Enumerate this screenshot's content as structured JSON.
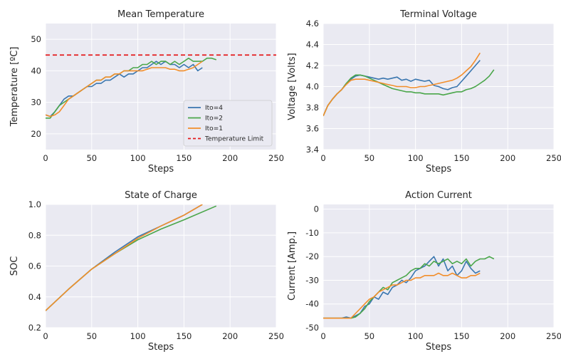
{
  "chart_data": [
    {
      "id": "temp",
      "type": "line",
      "title": "Mean Temperature",
      "xlabel": "Steps",
      "ylabel": "Temperature [ºC]",
      "xlim": [
        0,
        250
      ],
      "ylim": [
        15,
        55
      ],
      "xticks": [
        0,
        50,
        100,
        150,
        200,
        250
      ],
      "yticks": [
        20,
        30,
        40,
        50
      ],
      "grid": true,
      "legend": "lower-right",
      "hline": {
        "name": "Temperature Limit",
        "y": 45,
        "color": "#e41a1c"
      },
      "series": [
        {
          "name": "Ito=4",
          "color": "#3a76af",
          "x": [
            0,
            5,
            10,
            15,
            20,
            25,
            30,
            35,
            40,
            45,
            50,
            55,
            60,
            65,
            70,
            75,
            80,
            85,
            90,
            95,
            100,
            105,
            110,
            115,
            120,
            125,
            130,
            135,
            140,
            145,
            150,
            155,
            160,
            165,
            170
          ],
          "y": [
            26,
            25.5,
            27,
            29,
            31,
            32,
            32,
            33,
            34,
            35,
            35,
            36,
            36,
            37,
            37,
            38,
            39,
            38,
            39,
            39,
            40,
            41,
            41,
            42,
            43,
            42,
            43,
            42,
            42,
            41,
            42,
            41,
            42,
            40,
            41
          ]
        },
        {
          "name": "Ito=2",
          "color": "#4aa64a",
          "x": [
            0,
            5,
            10,
            15,
            20,
            25,
            30,
            35,
            40,
            45,
            50,
            55,
            60,
            65,
            70,
            75,
            80,
            85,
            90,
            95,
            100,
            105,
            110,
            115,
            120,
            125,
            130,
            135,
            140,
            145,
            150,
            155,
            160,
            165,
            170,
            175,
            180,
            185
          ],
          "y": [
            25,
            25,
            27,
            29,
            30,
            31,
            32,
            33,
            34,
            35,
            36,
            37,
            37,
            38,
            38,
            39,
            39,
            40,
            40,
            41,
            41,
            42,
            42,
            43,
            42,
            43,
            43,
            42,
            43,
            42,
            43,
            44,
            43,
            43,
            43,
            44,
            44,
            43.5
          ]
        },
        {
          "name": "Ito=1",
          "color": "#f28e2b",
          "x": [
            0,
            5,
            10,
            15,
            20,
            25,
            30,
            35,
            40,
            45,
            50,
            55,
            60,
            65,
            70,
            75,
            80,
            85,
            90,
            95,
            100,
            105,
            110,
            115,
            120,
            125,
            130,
            135,
            140,
            145,
            150,
            155,
            160,
            165,
            170
          ],
          "y": [
            26,
            25.5,
            26,
            27,
            29,
            31,
            32,
            33,
            34,
            35,
            36,
            37,
            37,
            38,
            38,
            39,
            39,
            40,
            40,
            40,
            40,
            40,
            40.5,
            41,
            41,
            41,
            41,
            40.5,
            40.5,
            40,
            40,
            40.5,
            41,
            42,
            43
          ]
        }
      ]
    },
    {
      "id": "voltage",
      "type": "line",
      "title": "Terminal Voltage",
      "xlabel": "Steps",
      "ylabel": "Voltage [Volts]",
      "xlim": [
        0,
        250
      ],
      "ylim": [
        3.4,
        4.6
      ],
      "xticks": [
        0,
        50,
        100,
        150,
        200,
        250
      ],
      "yticks": [
        3.4,
        3.6,
        3.8,
        4.0,
        4.2,
        4.4,
        4.6
      ],
      "grid": true,
      "series": [
        {
          "name": "Ito=4",
          "color": "#3a76af",
          "x": [
            0,
            5,
            10,
            15,
            20,
            25,
            30,
            35,
            40,
            45,
            50,
            55,
            60,
            65,
            70,
            75,
            80,
            85,
            90,
            95,
            100,
            105,
            110,
            115,
            120,
            125,
            130,
            135,
            140,
            145,
            150,
            155,
            160,
            165,
            170
          ],
          "y": [
            3.72,
            3.82,
            3.88,
            3.93,
            3.97,
            4.03,
            4.07,
            4.1,
            4.11,
            4.1,
            4.09,
            4.08,
            4.07,
            4.08,
            4.07,
            4.08,
            4.09,
            4.06,
            4.07,
            4.05,
            4.07,
            4.06,
            4.05,
            4.06,
            4.01,
            4.0,
            3.98,
            3.97,
            3.99,
            4.0,
            4.05,
            4.1,
            4.15,
            4.2,
            4.25
          ]
        },
        {
          "name": "Ito=2",
          "color": "#4aa64a",
          "x": [
            0,
            5,
            10,
            15,
            20,
            25,
            30,
            35,
            40,
            45,
            50,
            55,
            60,
            65,
            70,
            75,
            80,
            85,
            90,
            95,
            100,
            105,
            110,
            115,
            120,
            125,
            130,
            135,
            140,
            145,
            150,
            155,
            160,
            165,
            170,
            175,
            180,
            185
          ],
          "y": [
            3.72,
            3.82,
            3.88,
            3.93,
            3.97,
            4.03,
            4.08,
            4.11,
            4.11,
            4.1,
            4.08,
            4.06,
            4.04,
            4.02,
            4.0,
            3.98,
            3.97,
            3.96,
            3.95,
            3.95,
            3.94,
            3.94,
            3.93,
            3.93,
            3.93,
            3.93,
            3.92,
            3.93,
            3.94,
            3.95,
            3.95,
            3.97,
            3.98,
            4.0,
            4.03,
            4.06,
            4.1,
            4.16
          ]
        },
        {
          "name": "Ito=1",
          "color": "#f28e2b",
          "x": [
            0,
            5,
            10,
            15,
            20,
            25,
            30,
            35,
            40,
            45,
            50,
            55,
            60,
            65,
            70,
            75,
            80,
            85,
            90,
            95,
            100,
            105,
            110,
            115,
            120,
            125,
            130,
            135,
            140,
            145,
            150,
            155,
            160,
            165,
            170
          ],
          "y": [
            3.72,
            3.82,
            3.88,
            3.93,
            3.97,
            4.02,
            4.06,
            4.07,
            4.07,
            4.07,
            4.06,
            4.05,
            4.04,
            4.03,
            4.02,
            4.01,
            4.0,
            4.0,
            4.0,
            3.99,
            3.99,
            4.0,
            4.0,
            4.01,
            4.02,
            4.03,
            4.04,
            4.05,
            4.06,
            4.08,
            4.11,
            4.15,
            4.19,
            4.25,
            4.32
          ]
        }
      ]
    },
    {
      "id": "soc",
      "type": "line",
      "title": "State of Charge",
      "xlabel": "Steps",
      "ylabel": "SOC",
      "xlim": [
        0,
        250
      ],
      "ylim": [
        0.2,
        1.0
      ],
      "xticks": [
        0,
        50,
        100,
        150,
        200,
        250
      ],
      "yticks": [
        0.2,
        0.4,
        0.6,
        0.8,
        1.0
      ],
      "grid": true,
      "series": [
        {
          "name": "Ito=4",
          "color": "#3a76af",
          "x": [
            0,
            25,
            50,
            75,
            100,
            125,
            150,
            170
          ],
          "y": [
            0.31,
            0.45,
            0.58,
            0.69,
            0.79,
            0.86,
            0.93,
            1.0
          ]
        },
        {
          "name": "Ito=2",
          "color": "#4aa64a",
          "x": [
            0,
            25,
            50,
            75,
            100,
            125,
            150,
            185
          ],
          "y": [
            0.31,
            0.45,
            0.58,
            0.68,
            0.77,
            0.84,
            0.9,
            0.99
          ]
        },
        {
          "name": "Ito=1",
          "color": "#f28e2b",
          "x": [
            0,
            25,
            50,
            75,
            100,
            125,
            150,
            170
          ],
          "y": [
            0.31,
            0.45,
            0.58,
            0.68,
            0.78,
            0.86,
            0.93,
            1.0
          ]
        }
      ]
    },
    {
      "id": "current",
      "type": "line",
      "title": "Action Current",
      "xlabel": "Steps",
      "ylabel": "Current [Amp.]",
      "xlim": [
        0,
        250
      ],
      "ylim": [
        -50,
        2
      ],
      "xticks": [
        0,
        50,
        100,
        150,
        200,
        250
      ],
      "yticks": [
        -50,
        -40,
        -30,
        -20,
        -10,
        0
      ],
      "grid": true,
      "series": [
        {
          "name": "Ito=4",
          "color": "#3a76af",
          "x": [
            0,
            10,
            20,
            25,
            30,
            35,
            40,
            45,
            50,
            55,
            60,
            65,
            70,
            75,
            80,
            85,
            90,
            95,
            100,
            105,
            110,
            115,
            120,
            125,
            130,
            135,
            140,
            145,
            150,
            155,
            160,
            165,
            170
          ],
          "y": [
            -46,
            -46,
            -46,
            -45.5,
            -46,
            -45,
            -44,
            -41,
            -40,
            -37,
            -38,
            -35,
            -36,
            -33,
            -32,
            -30,
            -31,
            -29,
            -26,
            -25,
            -24,
            -22,
            -20,
            -24,
            -21,
            -26,
            -24,
            -28,
            -26,
            -22,
            -25,
            -27,
            -26
          ]
        },
        {
          "name": "Ito=2",
          "color": "#4aa64a",
          "x": [
            0,
            10,
            20,
            25,
            30,
            35,
            40,
            45,
            50,
            55,
            60,
            65,
            70,
            75,
            80,
            85,
            90,
            95,
            100,
            105,
            110,
            115,
            120,
            125,
            130,
            135,
            140,
            145,
            150,
            155,
            160,
            165,
            170,
            175,
            180,
            185
          ],
          "y": [
            -46,
            -46,
            -46,
            -46,
            -46,
            -45.5,
            -44,
            -42,
            -39,
            -37,
            -35,
            -33,
            -34,
            -31,
            -30,
            -29,
            -28,
            -26,
            -25,
            -25,
            -23,
            -24,
            -22,
            -23,
            -22,
            -21,
            -23,
            -22,
            -23,
            -21,
            -24,
            -22,
            -21,
            -21,
            -20,
            -21
          ]
        },
        {
          "name": "Ito=1",
          "color": "#f28e2b",
          "x": [
            0,
            10,
            20,
            25,
            30,
            35,
            40,
            45,
            50,
            55,
            60,
            65,
            70,
            75,
            80,
            85,
            90,
            95,
            100,
            105,
            110,
            115,
            120,
            125,
            130,
            135,
            140,
            145,
            150,
            155,
            160,
            165,
            170
          ],
          "y": [
            -46,
            -46,
            -46,
            -46,
            -46,
            -44,
            -42,
            -40,
            -38,
            -37,
            -35,
            -34,
            -33,
            -32,
            -32,
            -31,
            -30,
            -30,
            -29,
            -29,
            -28,
            -28,
            -28,
            -27,
            -28,
            -28,
            -27,
            -28,
            -29,
            -29,
            -28,
            -28,
            -27
          ]
        }
      ]
    }
  ]
}
